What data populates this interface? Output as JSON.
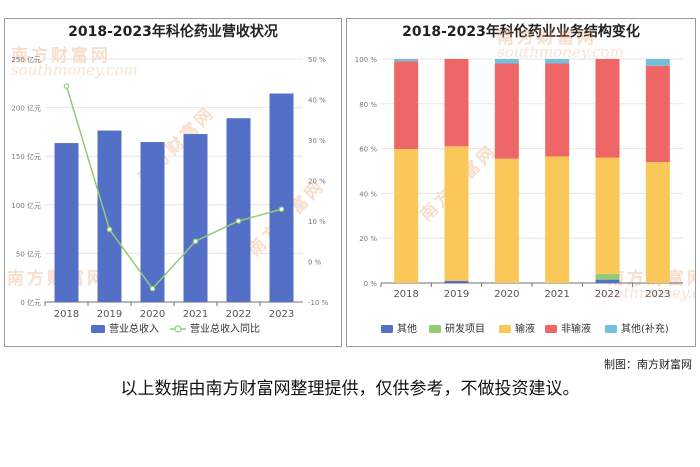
{
  "left_chart": {
    "title": "2018-2023年科伦药业营收状况",
    "legend": {
      "bar": "营业总收入",
      "line": "营业总收入同比"
    },
    "y_left_ticks": [
      "0 亿元",
      "50 亿元",
      "100 亿元",
      "150 亿元",
      "200 亿元",
      "250 亿元"
    ],
    "y_right_ticks": [
      "-10 %",
      "0 %",
      "10 %",
      "20 %",
      "30 %",
      "40 %",
      "50 %"
    ]
  },
  "right_chart": {
    "title": "2018-2023年科伦药业业务结构变化",
    "legend": [
      "其他",
      "研发项目",
      "输液",
      "非输液",
      "其他(补充)"
    ],
    "y_ticks": [
      "0 %",
      "20 %",
      "40 %",
      "60 %",
      "80 %",
      "100 %"
    ]
  },
  "watermark": {
    "cn": "南方财富网",
    "en": "southmoney.com"
  },
  "credit": "制图：南方财富网",
  "disclaimer": "以上数据由南方财富网整理提供，仅供参考，不做投资建议。",
  "colors": {
    "bar": "#5470c6",
    "line": "#91cc75",
    "other": "#5470c6",
    "rd": "#91cc75",
    "infusion": "#fac858",
    "non_infusion": "#ee6666",
    "other_supp": "#73c0de"
  },
  "chart_data": [
    {
      "type": "bar",
      "title": "2018-2023年科伦药业营收状况",
      "categories": [
        "2018",
        "2019",
        "2020",
        "2021",
        "2022",
        "2023"
      ],
      "series": [
        {
          "name": "营业总收入",
          "type": "bar",
          "axis": "left",
          "values": [
            163.5,
            176.4,
            164.6,
            172.8,
            189.1,
            214.5
          ]
        },
        {
          "name": "营业总收入同比",
          "type": "line",
          "axis": "right",
          "values": [
            43.3,
            7.9,
            -6.7,
            5.0,
            10.0,
            12.9
          ]
        }
      ],
      "ylim_left": [
        0,
        250
      ],
      "ylim_right": [
        -10,
        50
      ],
      "grid": true,
      "legend_position": "bottom"
    },
    {
      "type": "bar",
      "stacked": true,
      "title": "2018-2023年科伦药业业务结构变化",
      "categories": [
        "2018",
        "2019",
        "2020",
        "2021",
        "2022",
        "2023"
      ],
      "series": [
        {
          "name": "其他",
          "values": [
            0.0,
            1.0,
            0.0,
            0.0,
            1.5,
            0.0
          ]
        },
        {
          "name": "研发项目",
          "values": [
            0.0,
            0.0,
            0.0,
            0.0,
            2.5,
            0.0
          ]
        },
        {
          "name": "输液",
          "values": [
            59.8,
            60.0,
            55.5,
            56.5,
            52.0,
            54.0
          ]
        },
        {
          "name": "非输液",
          "values": [
            39.2,
            39.0,
            42.5,
            41.5,
            44.0,
            43.0
          ]
        },
        {
          "name": "其他(补充)",
          "values": [
            1.0,
            0.0,
            2.0,
            2.0,
            0.0,
            3.0
          ]
        }
      ],
      "ylim": [
        0,
        100
      ],
      "grid": true,
      "legend_position": "bottom"
    }
  ]
}
